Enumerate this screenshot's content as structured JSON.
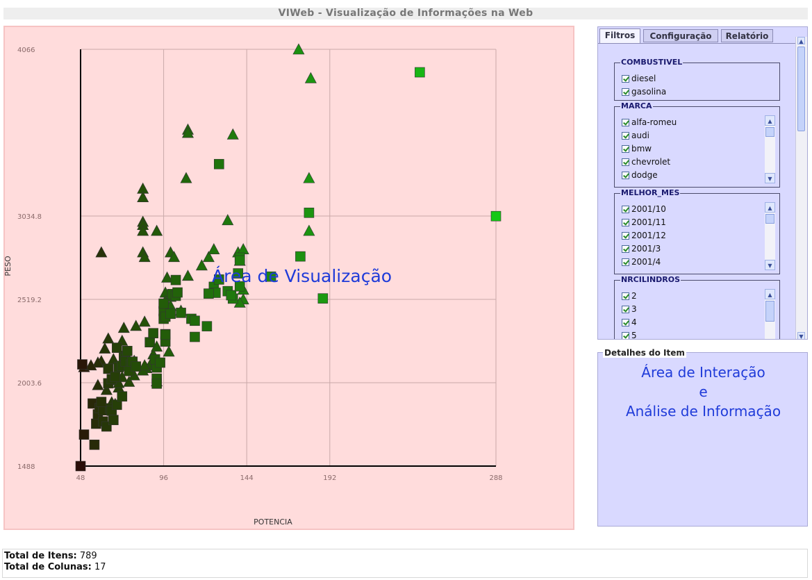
{
  "app_title": "VIWeb - Visualização de Informações na Web",
  "visualization": {
    "overlay_label": "Área de Visualização"
  },
  "colors": {
    "viz_bg": "#ffdcdc",
    "panel_bg": "#d9d9ff",
    "overlay_text": "#1f3bd9",
    "point_dark": "#2a0d08",
    "point_bright": "#16c816"
  },
  "chart_data": {
    "type": "scatter",
    "xlabel": "POTENCIA",
    "ylabel": "PESO",
    "xlim": [
      48,
      288
    ],
    "ylim": [
      1488,
      4066
    ],
    "x_ticks": [
      "48",
      "96",
      "144",
      "192",
      "288"
    ],
    "y_ticks": [
      "4066",
      "3034.8",
      "2519.2",
      "2003.6",
      "1488"
    ],
    "grid": true,
    "series": [
      {
        "marker": "triangle",
        "points": [
          [
            174,
            4066
          ],
          [
            181,
            3888
          ],
          [
            110,
            3570
          ],
          [
            110,
            3550
          ],
          [
            136,
            3540
          ],
          [
            109,
            3270
          ],
          [
            180,
            3270
          ],
          [
            84,
            3205
          ],
          [
            84,
            3152
          ],
          [
            133,
            3010
          ],
          [
            84,
            3000
          ],
          [
            84,
            2980
          ],
          [
            84,
            2944
          ],
          [
            92,
            2944
          ],
          [
            180,
            2944
          ],
          [
            60,
            2811
          ],
          [
            84,
            2811
          ],
          [
            85,
            2782
          ],
          [
            100,
            2811
          ],
          [
            102,
            2782
          ],
          [
            122,
            2782
          ],
          [
            139,
            2811
          ],
          [
            142,
            2830
          ],
          [
            140,
            2759
          ],
          [
            125,
            2830
          ],
          [
            118,
            2730
          ],
          [
            98,
            2655
          ],
          [
            110,
            2666
          ],
          [
            97,
            2562
          ],
          [
            100,
            2536
          ],
          [
            97,
            2509
          ],
          [
            97,
            2482
          ],
          [
            106,
            2450
          ],
          [
            85,
            2382
          ],
          [
            80,
            2356
          ],
          [
            73,
            2344
          ],
          [
            72,
            2264
          ],
          [
            64,
            2278
          ],
          [
            60,
            2138
          ],
          [
            58,
            2129
          ],
          [
            62,
            2216
          ],
          [
            50,
            2101
          ],
          [
            54,
            2112
          ],
          [
            71,
            2117
          ],
          [
            85,
            2100
          ],
          [
            92,
            2013
          ],
          [
            88,
            2112
          ],
          [
            90,
            2180
          ],
          [
            92,
            2228
          ],
          [
            99,
            2197
          ],
          [
            86,
            2095
          ],
          [
            72,
            2040
          ],
          [
            68,
            2020
          ],
          [
            58,
            1990
          ],
          [
            63,
            1960
          ],
          [
            70,
            1975
          ],
          [
            66,
            1884
          ],
          [
            61,
            1880
          ],
          [
            68,
            1873
          ],
          [
            70,
            2003
          ],
          [
            76,
            2010
          ],
          [
            79,
            2050
          ],
          [
            84,
            2080
          ],
          [
            67,
            2150
          ],
          [
            85,
            2112
          ],
          [
            79,
            2140
          ],
          [
            142,
            2580
          ],
          [
            142,
            2520
          ],
          [
            140,
            2500
          ],
          [
            100,
            2480
          ]
        ]
      },
      {
        "marker": "square",
        "points": [
          [
            48,
            1488
          ],
          [
            50,
            1683
          ],
          [
            56,
            1620
          ],
          [
            55,
            1875
          ],
          [
            57,
            1750
          ],
          [
            58,
            1808
          ],
          [
            59,
            1846
          ],
          [
            61,
            1833
          ],
          [
            65,
            1845
          ],
          [
            66,
            1830
          ],
          [
            61,
            1764
          ],
          [
            63,
            1733
          ],
          [
            67,
            1773
          ],
          [
            69,
            1867
          ],
          [
            72,
            1919
          ],
          [
            64,
            2000
          ],
          [
            66,
            2026
          ],
          [
            64,
            2090
          ],
          [
            68,
            2040
          ],
          [
            70,
            2100
          ],
          [
            72,
            2108
          ],
          [
            73,
            2170
          ],
          [
            74,
            2154
          ],
          [
            75,
            2200
          ],
          [
            74,
            2135
          ],
          [
            77,
            2116
          ],
          [
            76,
            2076
          ],
          [
            78,
            2134
          ],
          [
            69,
            2220
          ],
          [
            80,
            2104
          ],
          [
            88,
            2254
          ],
          [
            92,
            2098
          ],
          [
            92,
            2029
          ],
          [
            92,
            1998
          ],
          [
            97,
            2258
          ],
          [
            97,
            2304
          ],
          [
            97,
            2301
          ],
          [
            90,
            2310
          ],
          [
            96,
            2446
          ],
          [
            96,
            2399
          ],
          [
            106,
            2436
          ],
          [
            112,
            2399
          ],
          [
            114,
            2387
          ],
          [
            121,
            2353
          ],
          [
            96,
            2493
          ],
          [
            101,
            2552
          ],
          [
            103,
            2541
          ],
          [
            104,
            2562
          ],
          [
            103,
            2639
          ],
          [
            125,
            2597
          ],
          [
            126,
            2560
          ],
          [
            122,
            2555
          ],
          [
            133,
            2570
          ],
          [
            136,
            2524
          ],
          [
            135,
            2545
          ],
          [
            140,
            2600
          ],
          [
            139,
            2680
          ],
          [
            140,
            2777
          ],
          [
            140,
            2760
          ],
          [
            128,
            2642
          ],
          [
            158,
            2660
          ],
          [
            180,
            3055
          ],
          [
            175,
            2785
          ],
          [
            188,
            2525
          ],
          [
            114,
            2287
          ],
          [
            49,
            2117
          ],
          [
            60,
            1885
          ],
          [
            97,
            2412
          ],
          [
            100,
            2430
          ],
          [
            91,
            2148
          ],
          [
            94,
            2128
          ],
          [
            128,
            3356
          ],
          [
            244,
            3924
          ],
          [
            288,
            3034
          ]
        ]
      }
    ]
  },
  "tabs": [
    {
      "label": "Filtros"
    },
    {
      "label": "Configuração"
    },
    {
      "label": "Relatório"
    }
  ],
  "filters": {
    "combustivel": {
      "title": "COMBUSTIVEL",
      "items": [
        "diesel",
        "gasolina"
      ]
    },
    "marca": {
      "title": "MARCA",
      "items": [
        "alfa-romeu",
        "audi",
        "bmw",
        "chevrolet",
        "dodge"
      ]
    },
    "melhor_mes": {
      "title": "MELHOR_MES",
      "items": [
        "2001/10",
        "2001/11",
        "2001/12",
        "2001/3",
        "2001/4"
      ]
    },
    "nrcilindros": {
      "title": "NRCILINDROS",
      "items": [
        "2",
        "3",
        "4",
        "5"
      ]
    }
  },
  "details": {
    "title": "Detalhes do Item",
    "overlay_line1": "Área de Interação",
    "overlay_line2": "e",
    "overlay_line3": "Análise de Informação"
  },
  "footer": {
    "total_itens_label": "Total de Itens:",
    "total_itens_value": "789",
    "total_colunas_label": "Total de Colunas:",
    "total_colunas_value": "17"
  }
}
